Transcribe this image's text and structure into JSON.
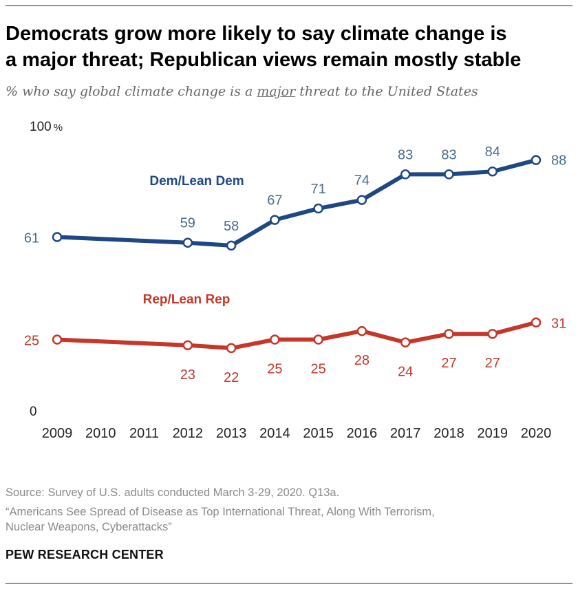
{
  "title_line_1": "Democrats grow more likely to say climate change is",
  "title_line_2": "a major threat; Republican views remain mostly stable",
  "subtitle": {
    "before": "% who say global climate change is a ",
    "emphasis": "major",
    "after": " threat to the United States"
  },
  "chart_data": {
    "type": "line",
    "title": "Democrats grow more likely to say climate change is a major threat; Republican views remain mostly stable",
    "x": [
      2009,
      2010,
      2011,
      2012,
      2013,
      2014,
      2015,
      2016,
      2017,
      2018,
      2019,
      2020
    ],
    "series": [
      {
        "name": "Dem/Lean Dem",
        "color": "#1f4783",
        "label_color": "#4a6c8a",
        "points": [
          {
            "x": 2009,
            "y": 61
          },
          {
            "x": 2012,
            "y": 59
          },
          {
            "x": 2013,
            "y": 58
          },
          {
            "x": 2014,
            "y": 67
          },
          {
            "x": 2015,
            "y": 71
          },
          {
            "x": 2016,
            "y": 74
          },
          {
            "x": 2017,
            "y": 83
          },
          {
            "x": 2018,
            "y": 83
          },
          {
            "x": 2019,
            "y": 84
          },
          {
            "x": 2020,
            "y": 88
          }
        ]
      },
      {
        "name": "Rep/Lean Rep",
        "color": "#c6372a",
        "label_color": "#c6372a",
        "points": [
          {
            "x": 2009,
            "y": 25
          },
          {
            "x": 2012,
            "y": 23
          },
          {
            "x": 2013,
            "y": 22
          },
          {
            "x": 2014,
            "y": 25
          },
          {
            "x": 2015,
            "y": 25
          },
          {
            "x": 2016,
            "y": 28
          },
          {
            "x": 2017,
            "y": 24
          },
          {
            "x": 2018,
            "y": 27
          },
          {
            "x": 2019,
            "y": 27
          },
          {
            "x": 2020,
            "y": 31
          }
        ]
      }
    ],
    "y_tick_labels": [
      {
        "value": 100,
        "label": "100",
        "unit": "%"
      },
      {
        "value": 0,
        "label": "0",
        "unit": ""
      }
    ],
    "ylim": [
      0,
      100
    ],
    "xlabel": "",
    "ylabel": "",
    "grid": false
  },
  "source_line": "Source: Survey of U.S. adults conducted March 3-29, 2020. Q13a.",
  "report_line_1": "“Americans See Spread of Disease as Top International Threat, Along With Terrorism,",
  "report_line_2": "Nuclear Weapons, Cyberattacks”",
  "org": "PEW RESEARCH CENTER"
}
